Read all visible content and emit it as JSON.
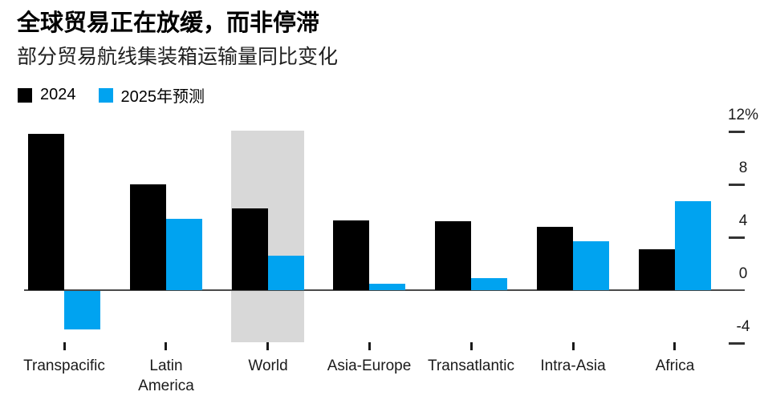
{
  "header": {
    "title": "全球贸易正在放缓，而非停滞",
    "subtitle": "部分贸易航线集装箱运输量同比变化"
  },
  "legend": [
    {
      "label": "2024",
      "color": "#000000"
    },
    {
      "label": "2025年预测",
      "color": "#00a3f0"
    }
  ],
  "colors": {
    "series_2024": "#000000",
    "series_2025": "#00a3f0",
    "highlight_band": "#d8d8d8",
    "axis": "#4a4a4a",
    "background": "#ffffff"
  },
  "chart_data": {
    "type": "bar",
    "title": "全球贸易正在放缓，而非停滞",
    "subtitle": "部分贸易航线集装箱运输量同比变化",
    "unit": "%",
    "categories": [
      {
        "name": "Transpacific",
        "lines": [
          "Transpacific"
        ]
      },
      {
        "name": "Latin America",
        "lines": [
          "Latin",
          "America"
        ]
      },
      {
        "name": "World",
        "lines": [
          "World"
        ]
      },
      {
        "name": "Asia-Europe",
        "lines": [
          "Asia-Europe"
        ]
      },
      {
        "name": "Transatlantic",
        "lines": [
          "Transatlantic"
        ]
      },
      {
        "name": "Intra-Asia",
        "lines": [
          "Intra-Asia"
        ]
      },
      {
        "name": "Africa",
        "lines": [
          "Africa"
        ]
      }
    ],
    "series": [
      {
        "name": "2024",
        "color": "#000000",
        "values": [
          11.8,
          8.0,
          6.2,
          5.3,
          5.2,
          4.8,
          3.1
        ]
      },
      {
        "name": "2025年预测",
        "color": "#00a3f0",
        "values": [
          -2.9,
          5.4,
          2.6,
          0.5,
          0.9,
          3.7,
          6.7
        ]
      }
    ],
    "yticks": [
      {
        "value": 12,
        "label": "12%"
      },
      {
        "value": 8,
        "label": "8"
      },
      {
        "value": 4,
        "label": "4"
      },
      {
        "value": 0,
        "label": "0"
      },
      {
        "value": -4,
        "label": "-4"
      }
    ],
    "ylim": [
      -4.5,
      12.5
    ],
    "grid": false,
    "legend_position": "top-left",
    "axis_side": "right",
    "highlight_category": "World",
    "highlight_color": "#d8d8d8"
  }
}
